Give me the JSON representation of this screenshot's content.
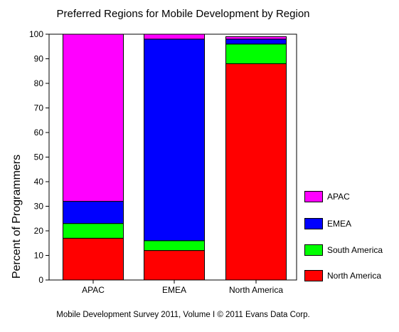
{
  "chart_data": {
    "type": "bar",
    "stacked": true,
    "title": "Preferred Regions for Mobile Development by Region",
    "xlabel": "",
    "ylabel": "Percent of Programmers",
    "ylim": [
      0,
      100
    ],
    "yticks": [
      "0",
      "10",
      "20",
      "30",
      "40",
      "50",
      "60",
      "70",
      "80",
      "90",
      "100"
    ],
    "categories": [
      "APAC",
      "EMEA",
      "North America"
    ],
    "series": [
      {
        "name": "North America",
        "color": "#ff0000",
        "values": [
          17,
          12,
          88
        ]
      },
      {
        "name": "South America",
        "color": "#00ff00",
        "values": [
          6,
          4,
          8
        ]
      },
      {
        "name": "EMEA",
        "color": "#0000ff",
        "values": [
          9,
          82,
          2
        ]
      },
      {
        "name": "APAC",
        "color": "#ff00ff",
        "values": [
          68,
          2,
          1
        ]
      }
    ],
    "legend_position": "right",
    "grid": false
  },
  "legend": [
    {
      "label": "APAC",
      "color": "#ff00ff"
    },
    {
      "label": "EMEA",
      "color": "#0000ff"
    },
    {
      "label": "South America",
      "color": "#00ff00"
    },
    {
      "label": "North America",
      "color": "#ff0000"
    }
  ],
  "footer": "Mobile Development Survey 2011, Volume I © 2011 Evans Data Corp."
}
